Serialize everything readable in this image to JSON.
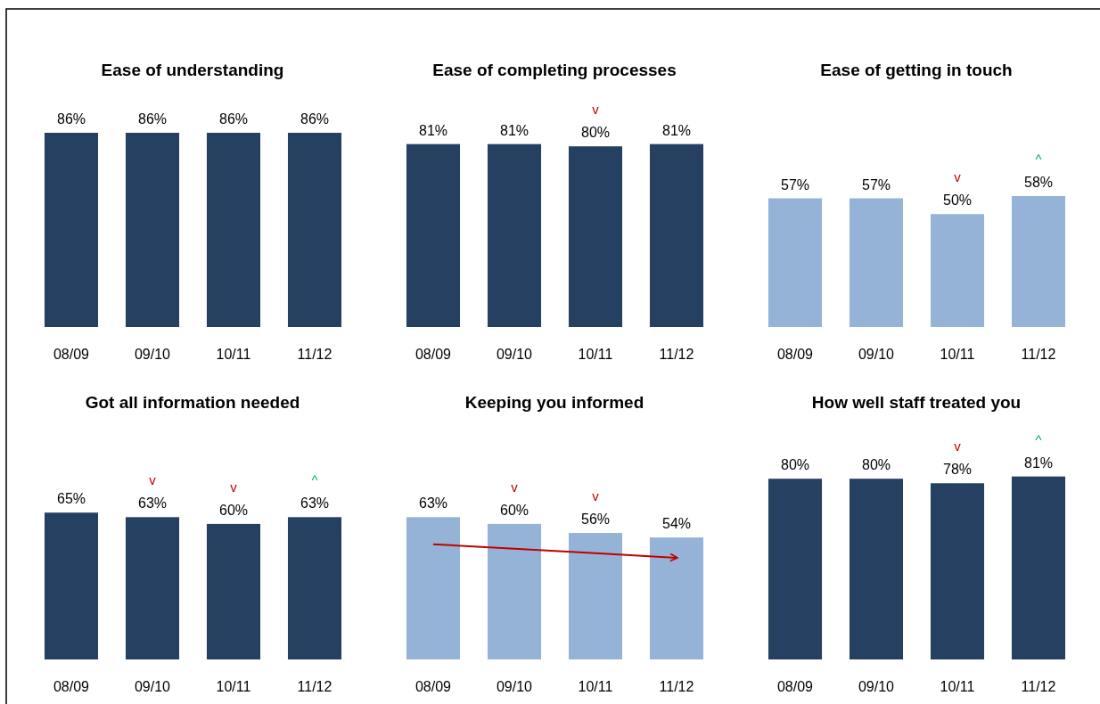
{
  "chart_data": [
    {
      "type": "bar",
      "title": "Ease of understanding",
      "categories": [
        "08/09",
        "09/10",
        "10/11",
        "11/12"
      ],
      "values": [
        86,
        86,
        86,
        86
      ],
      "value_labels": [
        "86%",
        "86%",
        "86%",
        "86%"
      ],
      "color": "#264061"
    },
    {
      "type": "bar",
      "title": "Ease of completing processes",
      "categories": [
        "08/09",
        "09/10",
        "10/11",
        "11/12"
      ],
      "values": [
        81,
        81,
        80,
        81
      ],
      "value_labels": [
        "81%",
        "81%",
        "80%",
        "81%"
      ],
      "color": "#264061",
      "annotations": [
        {
          "text": "v",
          "x": "10/11",
          "y": 80
        }
      ]
    },
    {
      "type": "bar",
      "title": "Ease of getting in touch",
      "categories": [
        "08/09",
        "09/10",
        "10/11",
        "11/12"
      ],
      "values": [
        57,
        57,
        50,
        58
      ],
      "value_labels": [
        "57%",
        "57%",
        "50%",
        "58%"
      ],
      "color": "#95b3d7",
      "annotations": [
        {
          "text": "v",
          "x": "10/11",
          "y": 50
        },
        {
          "text": "^",
          "x": "11/12",
          "y": 58
        }
      ]
    },
    {
      "type": "bar",
      "title": "Got all information needed",
      "categories": [
        "08/09",
        "09/10",
        "10/11",
        "11/12"
      ],
      "values": [
        65,
        63,
        60,
        63
      ],
      "value_labels": [
        "65%",
        "63%",
        "60%",
        "63%"
      ],
      "color": "#264061",
      "annotations": [
        {
          "text": "v",
          "x": "09/10",
          "y": 63
        },
        {
          "text": "v",
          "x": "10/11",
          "y": 60
        },
        {
          "text": "^",
          "x": "11/12",
          "y": 63
        }
      ]
    },
    {
      "type": "bar",
      "title": "Keeping you informed",
      "categories": [
        "08/09",
        "09/10",
        "10/11",
        "11/12"
      ],
      "series": [
        {
          "type": "bar",
          "color": "#95b3d7",
          "values": [
            63,
            60,
            56,
            54
          ],
          "value_labels": [
            "63%",
            "60%",
            "56%",
            "54%"
          ]
        },
        {
          "type": "line",
          "color": "#c00000",
          "values": [
            51,
            49,
            47,
            45
          ]
        }
      ],
      "annotations": [
        {
          "text": "v",
          "x": "09/10",
          "y": 60
        },
        {
          "text": "v",
          "x": "10/11",
          "y": 56
        }
      ]
    },
    {
      "type": "bar",
      "title": "How well staff treated you",
      "categories": [
        "08/09",
        "09/10",
        "10/11",
        "11/12"
      ],
      "values": [
        80,
        80,
        78,
        81
      ],
      "value_labels": [
        "80%",
        "80%",
        "78%",
        "81%"
      ],
      "color": "#264061",
      "annotations": [
        {
          "text": "v",
          "x": "10/11",
          "y": 78
        },
        {
          "text": "^",
          "x": "11/12",
          "y": 81
        }
      ]
    }
  ]
}
